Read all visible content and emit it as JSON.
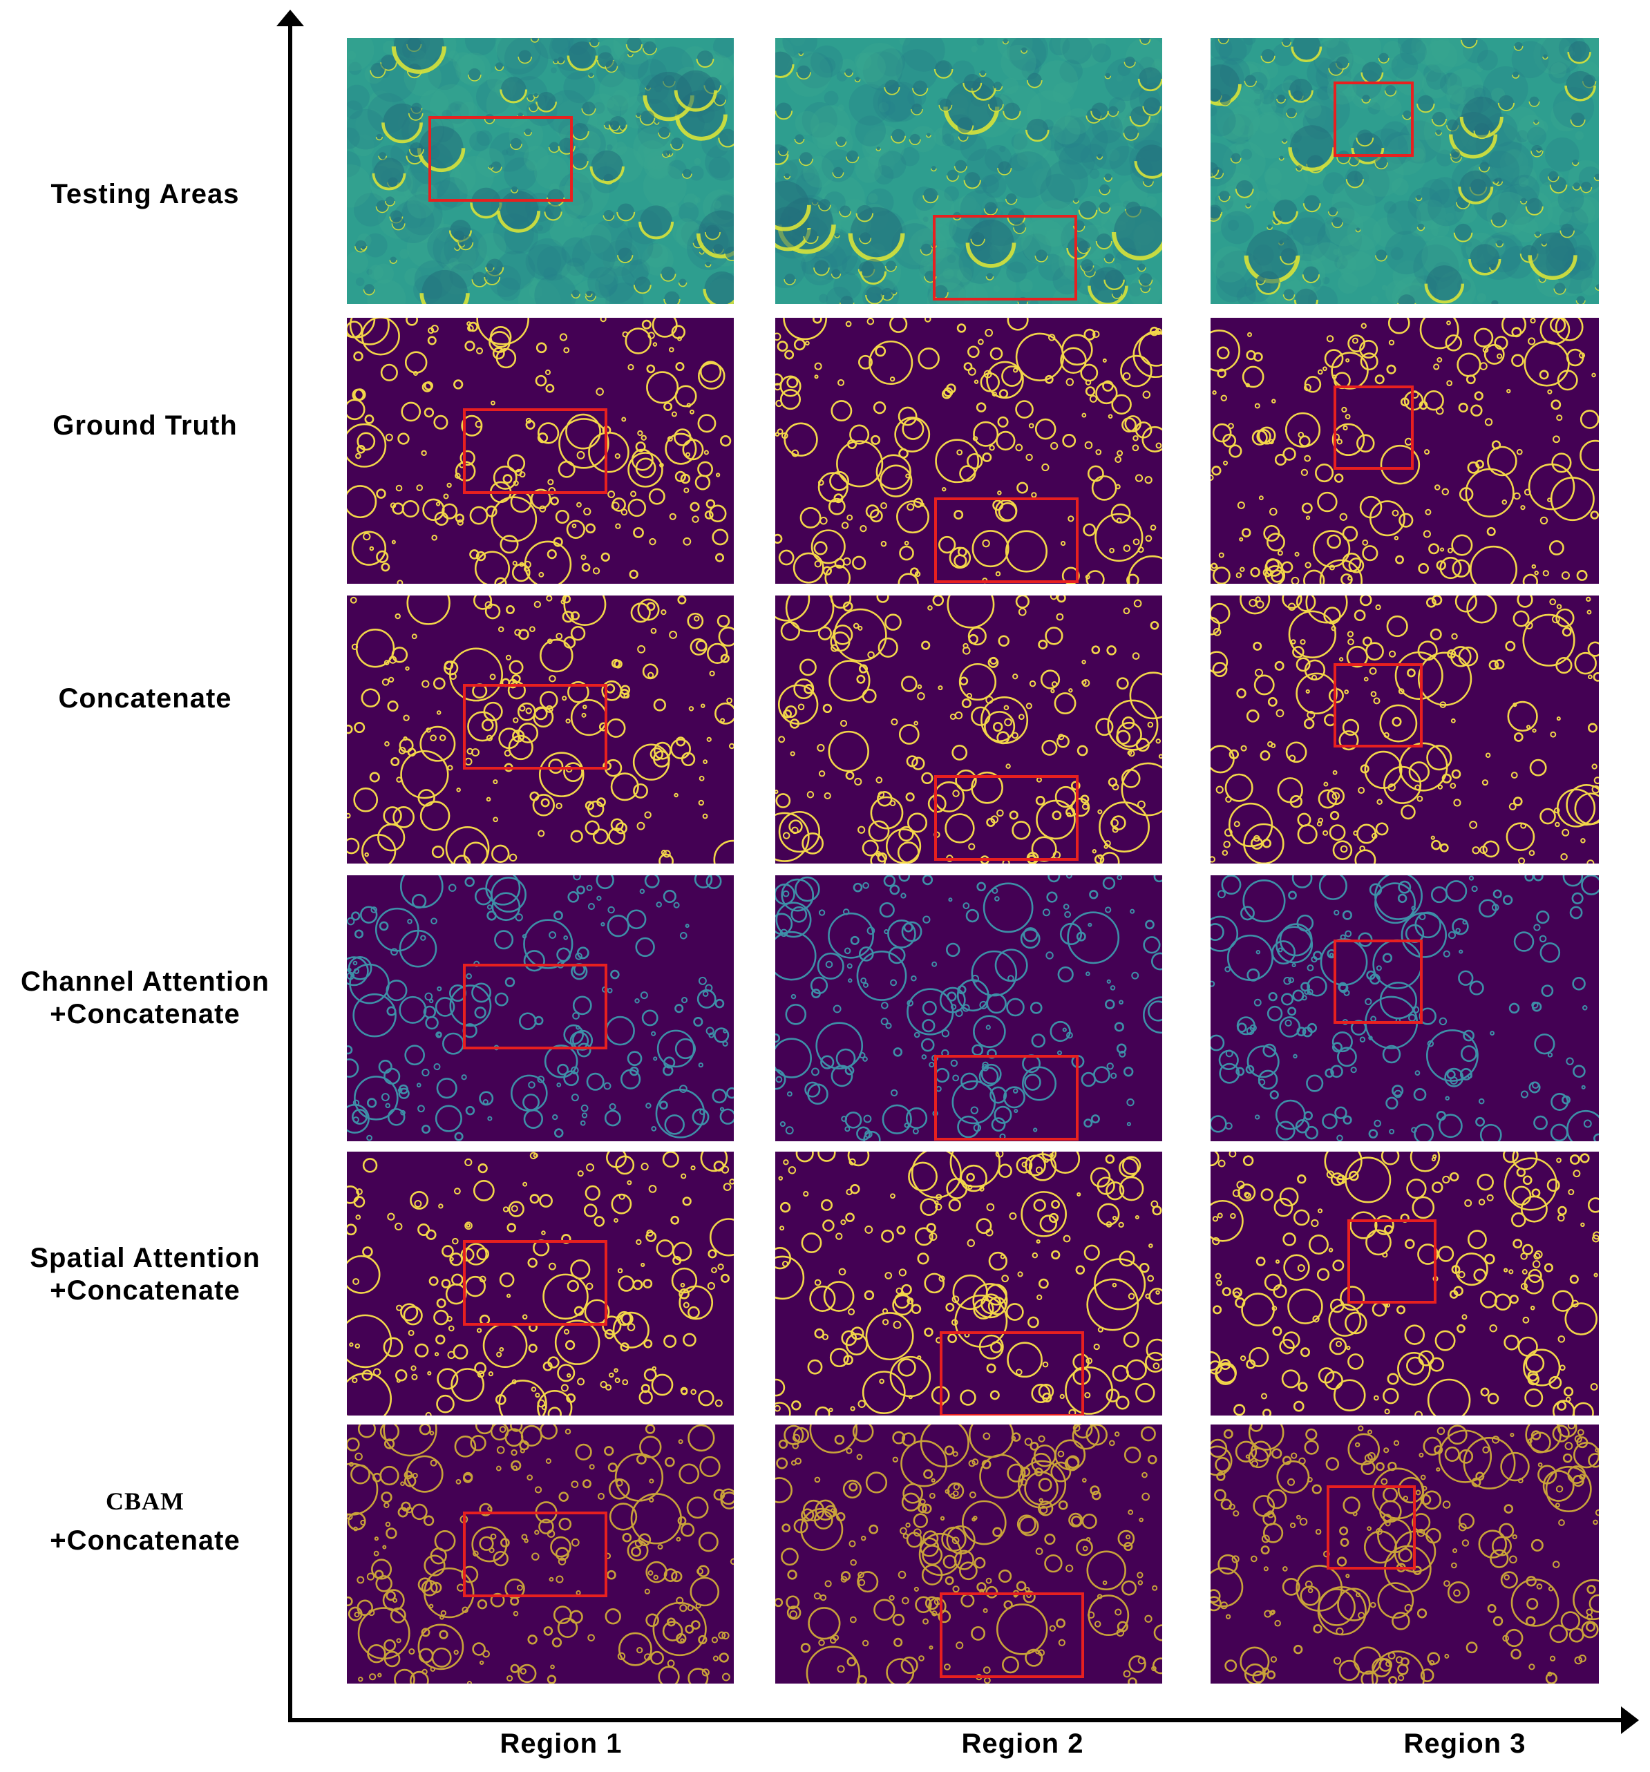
{
  "axes": {
    "x_labels": [
      "Region 1",
      "Region 2",
      "Region 3"
    ],
    "y_labels": [
      {
        "line1": "Testing Areas",
        "line2": ""
      },
      {
        "line1": "Ground Truth",
        "line2": ""
      },
      {
        "line1": "Concatenate",
        "line2": ""
      },
      {
        "line1": "Channel Attention",
        "line2": "+Concatenate"
      },
      {
        "line1": "Spatial Attention",
        "line2": "+Concatenate"
      },
      {
        "line1": "CBAM",
        "line2": "+Concatenate"
      }
    ]
  },
  "colors": {
    "terrain_base": "#2e9e8f",
    "terrain_highlight": "#d8e33a",
    "map_background": "#440154",
    "crater_yellow": "#f3d64a",
    "crater_blue": "#3e8fa8",
    "crater_orange": "#c9a23a",
    "highlight_box": "#e8201f"
  },
  "panel_styles": [
    "terrain",
    "yellow",
    "yellow",
    "blue",
    "yellow",
    "orange"
  ]
}
